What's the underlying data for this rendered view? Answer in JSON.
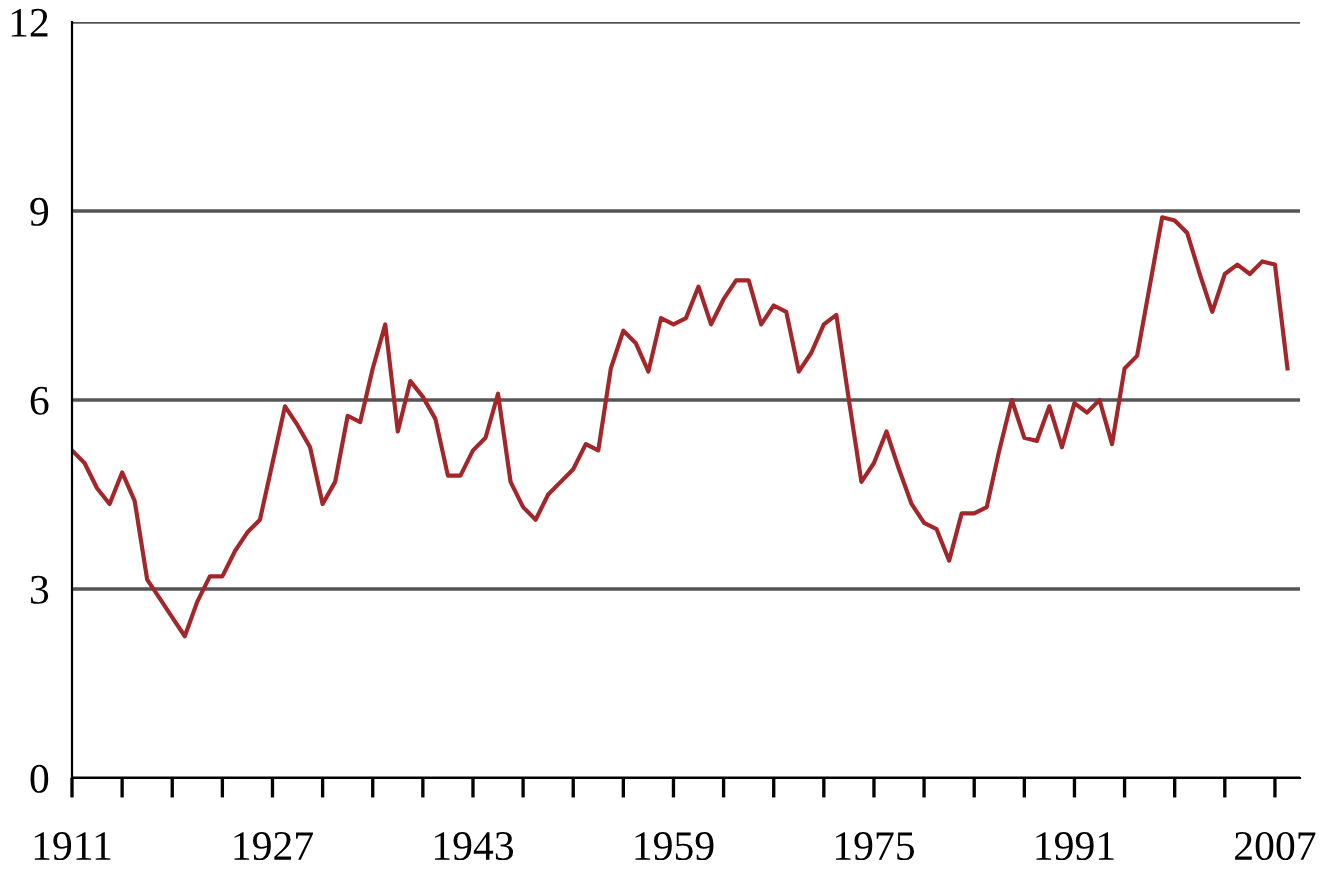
{
  "chart_data": {
    "type": "line",
    "x": [
      1911,
      1912,
      1913,
      1914,
      1915,
      1916,
      1917,
      1918,
      1919,
      1920,
      1921,
      1922,
      1923,
      1924,
      1925,
      1926,
      1927,
      1928,
      1929,
      1930,
      1931,
      1932,
      1933,
      1934,
      1935,
      1936,
      1937,
      1938,
      1939,
      1940,
      1941,
      1942,
      1943,
      1944,
      1945,
      1946,
      1947,
      1948,
      1949,
      1950,
      1951,
      1952,
      1953,
      1954,
      1955,
      1956,
      1957,
      1958,
      1959,
      1960,
      1961,
      1962,
      1963,
      1964,
      1965,
      1966,
      1967,
      1968,
      1969,
      1970,
      1971,
      1972,
      1973,
      1974,
      1975,
      1976,
      1977,
      1978,
      1979,
      1980,
      1981,
      1982,
      1983,
      1984,
      1985,
      1986,
      1987,
      1988,
      1989,
      1990,
      1991,
      1992,
      1993,
      1994,
      1995,
      1996,
      1997,
      1998,
      1999,
      2000,
      2001,
      2002,
      2003,
      2004,
      2005,
      2006,
      2007,
      2008
    ],
    "series": [
      {
        "color": "#a3262a",
        "values": [
          5.2,
          5.0,
          4.6,
          4.35,
          4.85,
          4.4,
          3.15,
          2.85,
          2.55,
          2.25,
          2.8,
          3.2,
          3.2,
          3.6,
          3.9,
          4.1,
          5.0,
          5.9,
          5.6,
          5.25,
          4.35,
          4.7,
          5.75,
          5.65,
          6.5,
          7.2,
          5.5,
          6.3,
          6.05,
          5.7,
          4.8,
          4.8,
          5.2,
          5.4,
          6.1,
          4.7,
          4.3,
          4.1,
          4.5,
          4.7,
          4.9,
          5.3,
          5.2,
          6.5,
          7.1,
          6.9,
          6.45,
          7.3,
          7.2,
          7.3,
          7.8,
          7.2,
          7.6,
          7.9,
          7.9,
          7.2,
          7.5,
          7.4,
          6.45,
          6.75,
          7.2,
          7.35,
          6.0,
          4.7,
          5.0,
          5.5,
          4.9,
          4.35,
          4.05,
          3.95,
          3.45,
          4.2,
          4.2,
          4.3,
          5.2,
          6.0,
          5.4,
          5.35,
          5.9,
          5.25,
          5.95,
          5.8,
          6.0,
          5.3,
          6.5,
          6.7,
          7.8,
          8.9,
          8.85,
          8.65,
          8.0,
          7.4,
          8.0,
          8.15,
          8.0,
          8.2,
          8.15,
          6.5
        ]
      }
    ],
    "xlim": [
      1911,
      2009
    ],
    "xticks": [
      1911,
      {
        "value": 1915,
        "label": null
      },
      {
        "value": 1919,
        "label": null
      },
      {
        "value": 1923,
        "label": null
      },
      1927,
      {
        "value": 1931,
        "label": null
      },
      {
        "value": 1935,
        "label": null
      },
      {
        "value": 1939,
        "label": null
      },
      1943,
      {
        "value": 1947,
        "label": null
      },
      {
        "value": 1951,
        "label": null
      },
      {
        "value": 1955,
        "label": null
      },
      1959,
      {
        "value": 1963,
        "label": null
      },
      {
        "value": 1967,
        "label": null
      },
      {
        "value": 1971,
        "label": null
      },
      1975,
      {
        "value": 1979,
        "label": null
      },
      {
        "value": 1983,
        "label": null
      },
      {
        "value": 1987,
        "label": null
      },
      1991,
      {
        "value": 1995,
        "label": null
      },
      {
        "value": 1999,
        "label": null
      },
      {
        "value": 2003,
        "label": null
      },
      2007
    ],
    "ylim": [
      0,
      12
    ],
    "yticks": [
      0,
      3,
      6,
      9,
      12
    ],
    "grid": "y",
    "legend": false
  }
}
